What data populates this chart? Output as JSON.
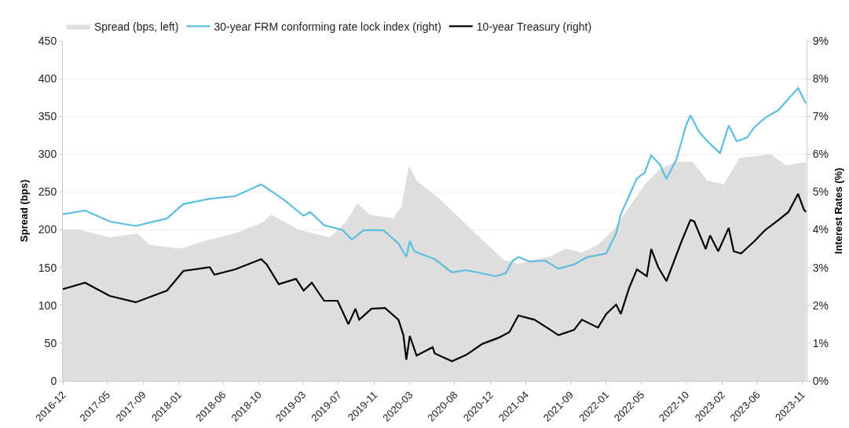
{
  "chart_data": {
    "type": "line",
    "ylabel": "Spread (bps)",
    "y2label": "Interest Rates (%)",
    "xlim": [
      "2016-12-15",
      "2023-12-01"
    ],
    "xticks": [
      {
        "value": "2016-12-15",
        "label": "2016-12"
      },
      {
        "value": "2017-05-15",
        "label": "2017-05"
      },
      {
        "value": "2017-09-15",
        "label": "2017-09"
      },
      {
        "value": "2018-01-15",
        "label": "2018-01"
      },
      {
        "value": "2018-06-15",
        "label": "2018-06"
      },
      {
        "value": "2018-10-15",
        "label": "2018-10"
      },
      {
        "value": "2019-03-15",
        "label": "2019-03"
      },
      {
        "value": "2019-07-15",
        "label": "2019-07"
      },
      {
        "value": "2019-11-15",
        "label": "2019-11"
      },
      {
        "value": "2020-03-15",
        "label": "2020-03"
      },
      {
        "value": "2020-08-15",
        "label": "2020-08"
      },
      {
        "value": "2020-12-15",
        "label": "2020-12"
      },
      {
        "value": "2021-04-15",
        "label": "2021-04"
      },
      {
        "value": "2021-09-15",
        "label": "2021-09"
      },
      {
        "value": "2022-01-15",
        "label": "2022-01"
      },
      {
        "value": "2022-05-15",
        "label": "2022-05"
      },
      {
        "value": "2022-10-15",
        "label": "2022-10"
      },
      {
        "value": "2023-02-15",
        "label": "2023-02"
      },
      {
        "value": "2023-06-15",
        "label": "2023-06"
      },
      {
        "value": "2023-11-15",
        "label": "2023-11"
      }
    ],
    "ylim": [
      0,
      450
    ],
    "yticks": [
      0,
      50,
      100,
      150,
      200,
      250,
      300,
      350,
      400,
      450
    ],
    "y2lim": [
      0,
      9
    ],
    "y2ticks": [
      {
        "value": 0,
        "label": "0%"
      },
      {
        "value": 1,
        "label": "1%"
      },
      {
        "value": 2,
        "label": "2%"
      },
      {
        "value": 3,
        "label": "3%"
      },
      {
        "value": 4,
        "label": "4%"
      },
      {
        "value": 5,
        "label": "5%"
      },
      {
        "value": 6,
        "label": "6%"
      },
      {
        "value": 7,
        "label": "7%"
      },
      {
        "value": 8,
        "label": "8%"
      },
      {
        "value": 9,
        "label": "9%"
      }
    ],
    "grid": "y",
    "legend": "top left",
    "series": [
      {
        "name": "Spread (bps, left)",
        "type": "area",
        "color": "#dedede",
        "x": [
          "2016-12-15",
          "2017-02-08",
          "2017-05-24",
          "2017-08-27",
          "2017-10-06",
          "2018-01-24",
          "2018-04-12",
          "2018-07-27",
          "2018-10-30",
          "2018-11-27",
          "2019-03-01",
          "2019-06-15",
          "2019-08-09",
          "2019-09-18",
          "2019-10-30",
          "2020-01-18",
          "2020-02-15",
          "2020-03-12",
          "2020-04-07",
          "2020-06-27",
          "2020-10-12",
          "2021-01-30",
          "2021-03-21",
          "2021-07-09",
          "2021-08-30",
          "2021-10-24",
          "2021-12-18",
          "2022-02-09",
          "2022-04-03",
          "2022-05-27",
          "2022-07-18",
          "2022-09-12",
          "2022-11-06",
          "2022-12-27",
          "2023-02-21",
          "2023-04-15",
          "2023-07-31",
          "2023-09-24",
          "2023-11-29"
        ],
        "values": [
          200,
          200,
          190,
          195,
          180,
          175,
          185,
          195,
          210,
          220,
          200,
          190,
          210,
          235,
          220,
          215,
          230,
          285,
          265,
          240,
          200,
          160,
          155,
          165,
          175,
          170,
          180,
          200,
          230,
          260,
          280,
          290,
          290,
          265,
          260,
          295,
          300,
          285,
          290
        ]
      },
      {
        "name": "30-year FRM conforming rate lock index (right)",
        "axis": "y2",
        "color": "#5bbde0",
        "x": [
          "2016-12-15",
          "2017-03-01",
          "2017-05-24",
          "2017-08-21",
          "2017-12-06",
          "2018-01-31",
          "2018-05-01",
          "2018-07-27",
          "2018-10-24",
          "2019-01-05",
          "2019-03-18",
          "2019-04-09",
          "2019-05-27",
          "2019-07-30",
          "2019-08-30",
          "2019-10-09",
          "2019-12-15",
          "2020-02-05",
          "2020-03-03",
          "2020-03-15",
          "2020-03-30",
          "2020-06-08",
          "2020-08-06",
          "2020-09-24",
          "2021-01-03",
          "2021-02-06",
          "2021-03-01",
          "2021-03-21",
          "2021-04-27",
          "2021-06-21",
          "2021-08-05",
          "2021-09-27",
          "2021-11-12",
          "2022-01-15",
          "2022-02-18",
          "2022-03-06",
          "2022-04-03",
          "2022-04-30",
          "2022-05-27",
          "2022-06-18",
          "2022-07-18",
          "2022-08-09",
          "2022-09-12",
          "2022-10-15",
          "2022-10-30",
          "2022-11-27",
          "2022-12-27",
          "2023-02-08",
          "2023-03-10",
          "2023-04-06",
          "2023-05-12",
          "2023-06-06",
          "2023-07-12",
          "2023-08-27",
          "2023-11-02",
          "2023-11-29"
        ],
        "values": [
          4.41,
          4.51,
          4.22,
          4.1,
          4.3,
          4.68,
          4.82,
          4.89,
          5.2,
          4.82,
          4.37,
          4.47,
          4.12,
          3.99,
          3.74,
          3.99,
          3.99,
          3.64,
          3.28,
          3.7,
          3.43,
          3.22,
          2.87,
          2.93,
          2.77,
          2.85,
          3.18,
          3.28,
          3.16,
          3.18,
          2.97,
          3.08,
          3.28,
          3.37,
          3.91,
          4.41,
          4.89,
          5.36,
          5.51,
          5.97,
          5.72,
          5.34,
          5.86,
          6.76,
          7.03,
          6.61,
          6.34,
          6.03,
          6.76,
          6.34,
          6.44,
          6.72,
          6.96,
          7.17,
          7.75,
          7.34
        ]
      },
      {
        "name": "10-year Treasury (right)",
        "axis": "y2",
        "color": "#000000",
        "x": [
          "2016-12-15",
          "2017-03-01",
          "2017-05-24",
          "2017-08-21",
          "2017-12-06",
          "2018-01-31",
          "2018-05-01",
          "2018-05-17",
          "2018-07-27",
          "2018-10-24",
          "2018-11-12",
          "2018-12-23",
          "2019-02-20",
          "2019-03-18",
          "2019-04-15",
          "2019-05-27",
          "2019-07-12",
          "2019-08-18",
          "2019-09-11",
          "2019-09-24",
          "2019-11-05",
          "2019-12-21",
          "2020-02-05",
          "2020-02-22",
          "2020-03-03",
          "2020-03-15",
          "2020-04-07",
          "2020-06-01",
          "2020-06-08",
          "2020-08-06",
          "2020-09-24",
          "2020-11-18",
          "2021-01-12",
          "2021-02-18",
          "2021-03-21",
          "2021-05-15",
          "2021-07-09",
          "2021-08-05",
          "2021-09-27",
          "2021-10-24",
          "2021-12-18",
          "2022-01-15",
          "2022-02-18",
          "2022-03-06",
          "2022-04-03",
          "2022-04-30",
          "2022-06-03",
          "2022-06-18",
          "2022-07-12",
          "2022-08-09",
          "2022-09-30",
          "2022-10-30",
          "2022-11-12",
          "2022-12-21",
          "2023-01-05",
          "2023-02-02",
          "2023-03-10",
          "2023-03-27",
          "2023-04-21",
          "2023-06-06",
          "2023-07-12",
          "2023-08-27",
          "2023-09-30",
          "2023-11-02",
          "2023-11-22",
          "2023-11-29"
        ],
        "values": [
          2.43,
          2.6,
          2.25,
          2.08,
          2.39,
          2.91,
          3.01,
          2.81,
          2.95,
          3.22,
          3.08,
          2.56,
          2.7,
          2.39,
          2.6,
          2.12,
          2.12,
          1.5,
          1.91,
          1.62,
          1.91,
          1.93,
          1.62,
          1.21,
          0.56,
          1.19,
          0.67,
          0.89,
          0.73,
          0.52,
          0.69,
          0.98,
          1.14,
          1.29,
          1.73,
          1.62,
          1.35,
          1.21,
          1.35,
          1.62,
          1.41,
          1.77,
          2.02,
          1.77,
          2.45,
          2.95,
          2.77,
          3.49,
          3.01,
          2.64,
          3.7,
          4.26,
          4.22,
          3.49,
          3.85,
          3.43,
          4.05,
          3.43,
          3.37,
          3.7,
          3.99,
          4.26,
          4.47,
          4.95,
          4.53,
          4.47
        ]
      }
    ]
  }
}
